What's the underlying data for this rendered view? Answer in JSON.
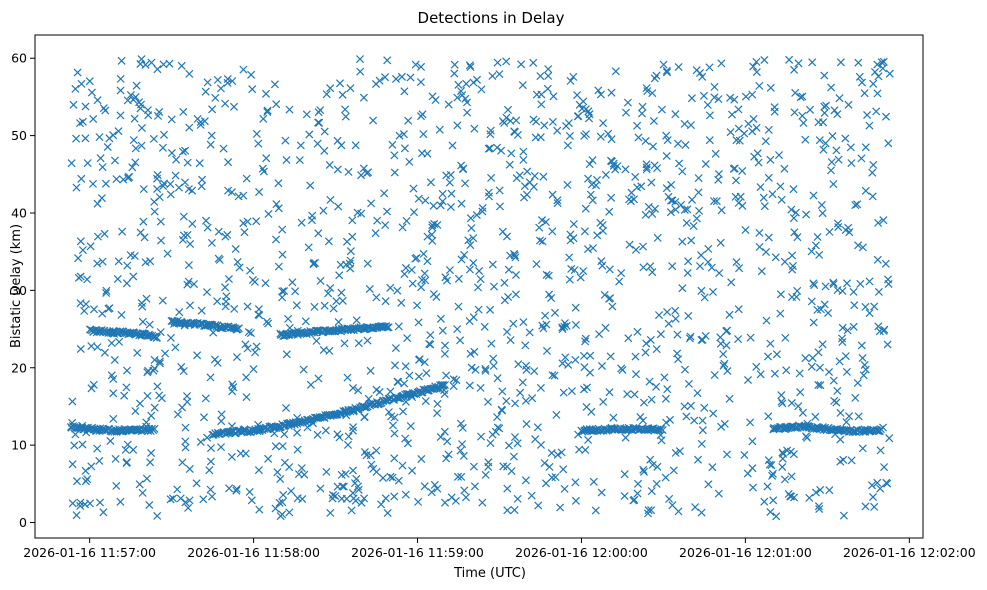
{
  "chart_data": {
    "type": "scatter",
    "title": "Detections in Delay",
    "xlabel": "Time (UTC)",
    "ylabel": "Bistatic Delay (km)",
    "marker": "x",
    "color": "#1f77b4",
    "grid": false,
    "legend": "none",
    "x_axis": {
      "kind": "datetime",
      "min": "2026-01-16 11:56:40",
      "max": "2026-01-16 12:02:05",
      "ticks": [
        {
          "value": "2026-01-16 11:57:00",
          "label": "2026-01-16 11:57:00"
        },
        {
          "value": "2026-01-16 11:58:00",
          "label": "2026-01-16 11:58:00"
        },
        {
          "value": "2026-01-16 11:59:00",
          "label": "2026-01-16 11:59:00"
        },
        {
          "value": "2026-01-16 12:00:00",
          "label": "2026-01-16 12:00:00"
        },
        {
          "value": "2026-01-16 12:01:00",
          "label": "2026-01-16 12:01:00"
        },
        {
          "value": "2026-01-16 12:02:00",
          "label": "2026-01-16 12:02:00"
        }
      ]
    },
    "y_axis": {
      "min": -2,
      "max": 63,
      "ticks": [
        0,
        10,
        20,
        30,
        40,
        50,
        60
      ]
    },
    "time_range": {
      "start": "2026-01-16 11:56:53",
      "end": "2026-01-16 12:01:53"
    },
    "series": [
      {
        "kind": "tracks",
        "tracks": [
          {
            "points": [
              [
                "2026-01-16 11:56:53",
                12.3
              ],
              [
                "2026-01-16 11:57:00",
                12.1
              ],
              [
                "2026-01-16 11:57:08",
                11.9
              ],
              [
                "2026-01-16 11:57:16",
                11.9
              ],
              [
                "2026-01-16 11:57:24",
                12.0
              ]
            ]
          },
          {
            "points": [
              [
                "2026-01-16 11:57:00",
                24.8
              ],
              [
                "2026-01-16 11:57:10",
                24.6
              ],
              [
                "2026-01-16 11:57:20",
                24.3
              ],
              [
                "2026-01-16 11:57:25",
                24.0
              ]
            ]
          },
          {
            "points": [
              [
                "2026-01-16 11:57:30",
                26.0
              ],
              [
                "2026-01-16 11:57:40",
                25.6
              ],
              [
                "2026-01-16 11:57:50",
                25.2
              ],
              [
                "2026-01-16 11:57:55",
                25.0
              ]
            ]
          },
          {
            "points": [
              [
                "2026-01-16 11:57:45",
                11.4
              ],
              [
                "2026-01-16 11:58:00",
                11.9
              ],
              [
                "2026-01-16 11:58:15",
                12.8
              ],
              [
                "2026-01-16 11:58:30",
                14.0
              ],
              [
                "2026-01-16 11:58:45",
                15.4
              ],
              [
                "2026-01-16 11:59:00",
                16.8
              ],
              [
                "2026-01-16 11:59:10",
                17.8
              ]
            ]
          },
          {
            "points": [
              [
                "2026-01-16 11:58:10",
                24.2
              ],
              [
                "2026-01-16 11:58:25",
                24.7
              ],
              [
                "2026-01-16 11:58:40",
                25.1
              ],
              [
                "2026-01-16 11:58:50",
                25.3
              ]
            ]
          },
          {
            "points": [
              [
                "2026-01-16 12:00:00",
                11.9
              ],
              [
                "2026-01-16 12:00:15",
                12.1
              ],
              [
                "2026-01-16 12:00:30",
                12.0
              ]
            ]
          },
          {
            "points": [
              [
                "2026-01-16 12:01:10",
                12.1
              ],
              [
                "2026-01-16 12:01:20",
                12.4
              ],
              [
                "2026-01-16 12:01:40",
                11.8
              ],
              [
                "2026-01-16 12:01:50",
                12.0
              ]
            ]
          }
        ]
      }
    ]
  }
}
